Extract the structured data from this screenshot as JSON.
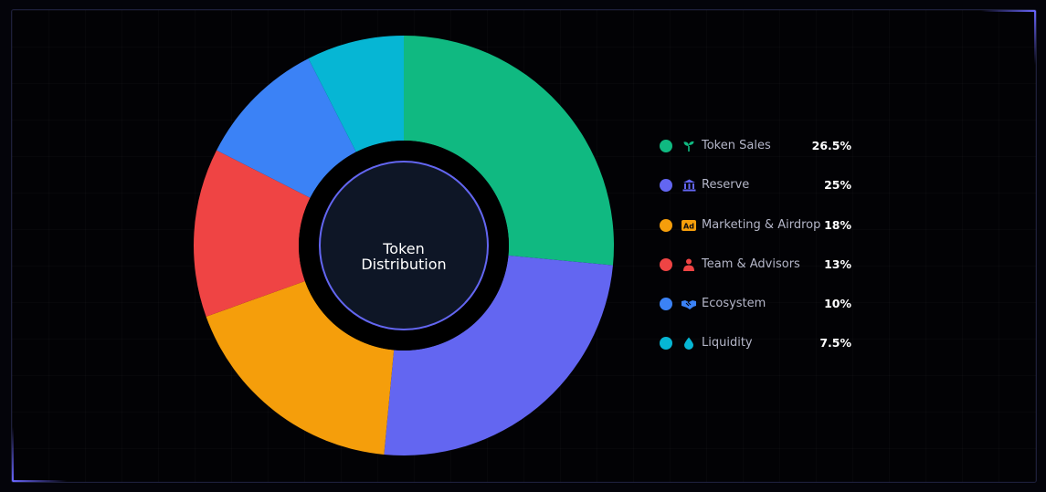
{
  "center_label": {
    "line1": "Token",
    "line2": "Distribution"
  },
  "colors": {
    "background": "#04040a",
    "hole": "#0e1626",
    "hole_ring": "#6366f1"
  },
  "chart_data": {
    "type": "pie",
    "title": "",
    "categories": [
      "Token Sales",
      "Reserve",
      "Marketing & Airdrop",
      "Team & Advisors",
      "Ecosystem",
      "Liquidity"
    ],
    "values": [
      26.5,
      25,
      18,
      13,
      10,
      7.5
    ],
    "value_labels": [
      "26.5%",
      "25%",
      "18%",
      "13%",
      "10%",
      "7.5%"
    ],
    "colors": [
      "#10b981",
      "#6366f1",
      "#f59e0b",
      "#ef4444",
      "#3b82f6",
      "#06b6d4"
    ],
    "icons": [
      "sprout-icon",
      "bank-icon",
      "ad-icon",
      "person-icon",
      "handshake-icon",
      "droplet-icon"
    ],
    "donut": true,
    "legend_placement": "right"
  }
}
